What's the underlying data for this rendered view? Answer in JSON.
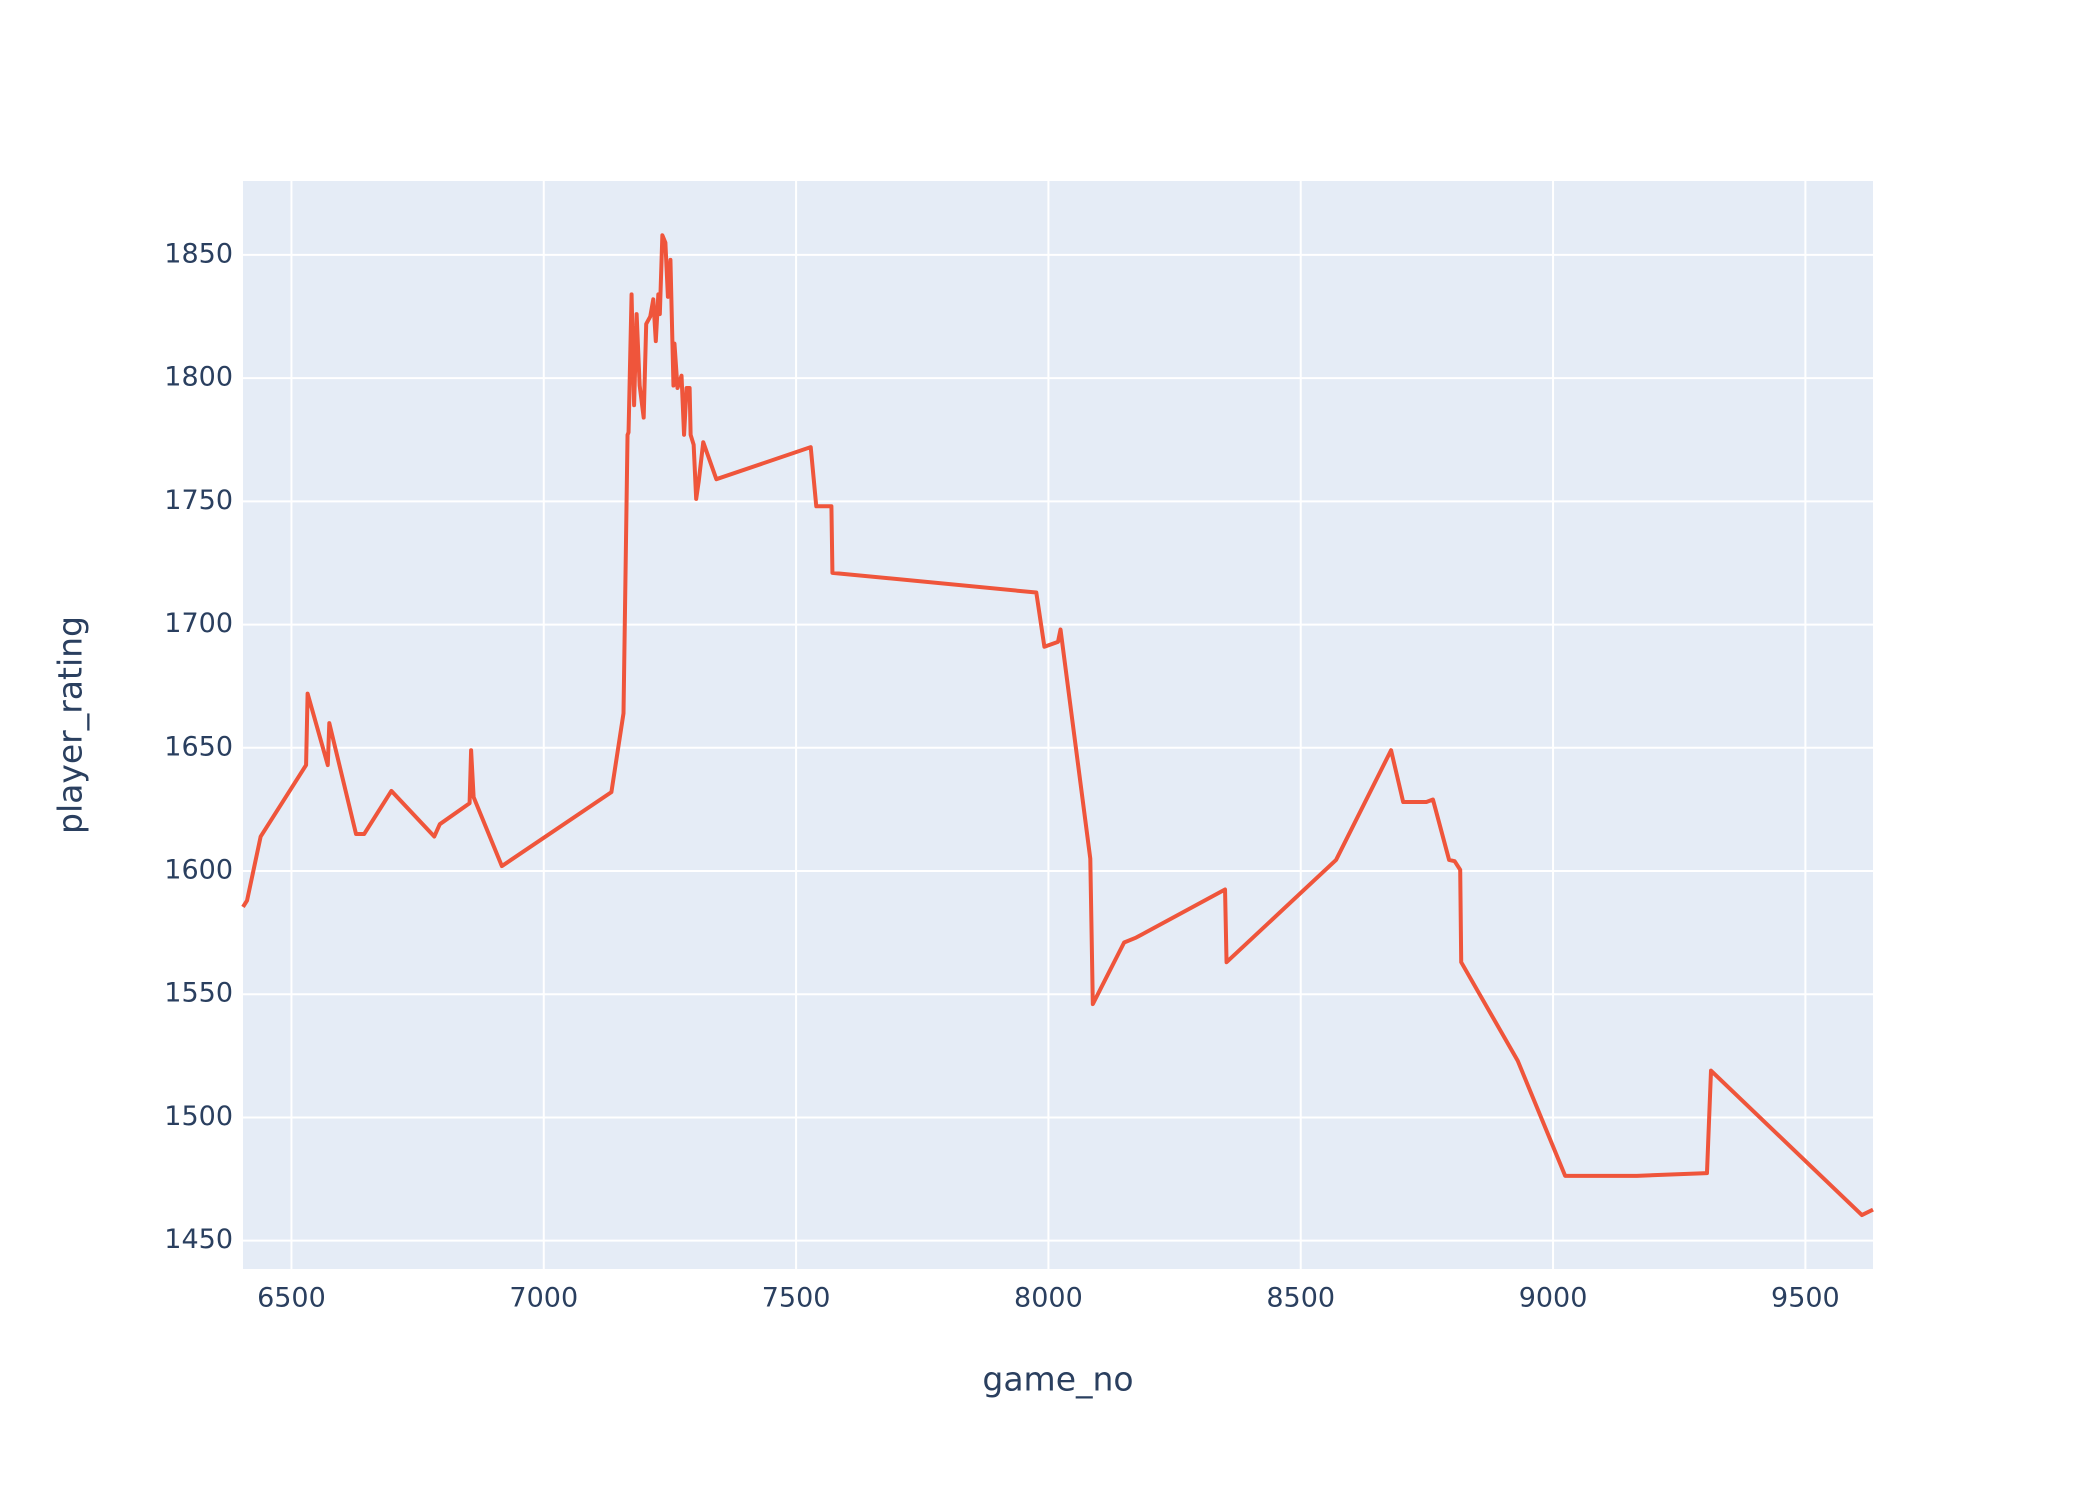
{
  "chart_data": {
    "type": "line",
    "xlabel": "game_no",
    "ylabel": "player_rating",
    "x": [
      6404,
      6412,
      6439,
      6529,
      6532,
      6572,
      6575,
      6628,
      6644,
      6698,
      6783,
      6794,
      6853,
      6856,
      6861,
      6917,
      7134,
      7158,
      7166,
      7168,
      7174,
      7179,
      7184,
      7190,
      7198,
      7203,
      7211,
      7217,
      7222,
      7227,
      7230,
      7235,
      7241,
      7246,
      7251,
      7257,
      7259,
      7265,
      7273,
      7278,
      7283,
      7289,
      7291,
      7297,
      7302,
      7307,
      7316,
      7342,
      7529,
      7540,
      7570,
      7572,
      7976,
      7992,
      8019,
      8024,
      8083,
      8088,
      8150,
      8174,
      8350,
      8353,
      8570,
      8679,
      8703,
      8749,
      8762,
      8794,
      8805,
      8816,
      8818,
      8930,
      9024,
      9166,
      9305,
      9313,
      9318,
      9612,
      9634
    ],
    "series": [
      {
        "name": "player_rating",
        "color": "#EF553B",
        "values": [
          1585.4,
          1588,
          1614,
          1643,
          1672,
          1643,
          1660,
          1615,
          1615,
          1632.5,
          1614,
          1619,
          1627.5,
          1649,
          1630,
          1602,
          1632,
          1664,
          1777,
          1778,
          1834,
          1789,
          1826,
          1797,
          1784,
          1822,
          1825,
          1832,
          1815,
          1834,
          1826,
          1858,
          1855,
          1833,
          1848,
          1797,
          1814,
          1796,
          1801,
          1777,
          1796,
          1796,
          1777,
          1773,
          1751,
          1758,
          1774,
          1759,
          1772,
          1748,
          1748,
          1721,
          1713,
          1691,
          1693,
          1698,
          1605,
          1546,
          1571,
          1573,
          1592.5,
          1563,
          1604.5,
          1649,
          1628,
          1628,
          1629,
          1604.5,
          1604,
          1600.5,
          1563,
          1523,
          1476.3,
          1476.3,
          1477.4,
          1519,
          1518,
          1460.4,
          1462.6
        ]
      }
    ],
    "xlim": [
      6404,
      9634
    ],
    "xticks": [
      6500,
      7000,
      7500,
      8000,
      8500,
      9000,
      9500
    ],
    "ylim": [
      1438.5,
      1880
    ],
    "yticks": [
      1450,
      1500,
      1550,
      1600,
      1650,
      1700,
      1750,
      1800,
      1850
    ],
    "grid": true
  }
}
